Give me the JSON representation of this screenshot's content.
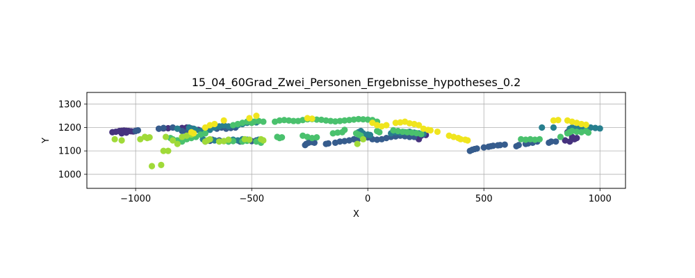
{
  "chart_data": {
    "type": "scatter",
    "title": "15_04_60Grad_Zwei_Personen_Ergebnisse_hypotheses_0.2",
    "xlabel": "X",
    "ylabel": "Y",
    "xlim": [
      -1210,
      1110
    ],
    "ylim": [
      940,
      1350
    ],
    "xticks": [
      -1000,
      -500,
      0,
      500,
      1000
    ],
    "yticks": [
      1000,
      1100,
      1200,
      1300
    ],
    "xtick_labels": [
      "−1000",
      "−500",
      "0",
      "500",
      "1000"
    ],
    "ytick_labels": [
      "1000",
      "1100",
      "1200",
      "1300"
    ],
    "grid": true,
    "colormap": "viridis",
    "colors": {
      "dark_purple": "#46327e",
      "blue": "#365c8d",
      "teal": "#277f8e",
      "green": "#4ac16d",
      "lime": "#a0da39",
      "yellow": "#f0e51e"
    },
    "groups": [
      {
        "color": "dark_purple",
        "points": [
          [
            -1100,
            1180
          ],
          [
            -1085,
            1182
          ],
          [
            -1070,
            1185
          ],
          [
            -1060,
            1186
          ],
          [
            -1050,
            1187
          ],
          [
            -1040,
            1186
          ],
          [
            -1030,
            1185
          ],
          [
            -1020,
            1184
          ],
          [
            -1010,
            1183
          ],
          [
            -1000,
            1186
          ],
          [
            -1060,
            1175
          ],
          [
            -1040,
            1178
          ],
          [
            -900,
            1195
          ],
          [
            -880,
            1196
          ],
          [
            -860,
            1197
          ],
          [
            -800,
            1198
          ],
          [
            -780,
            1200
          ],
          [
            -760,
            1196
          ],
          [
            890,
            1150
          ],
          [
            900,
            1155
          ],
          [
            880,
            1160
          ],
          [
            870,
            1140
          ],
          [
            850,
            1145
          ],
          [
            860,
            1180
          ],
          [
            900,
            1190
          ],
          [
            210,
            1160
          ],
          [
            230,
            1165
          ],
          [
            220,
            1150
          ],
          [
            250,
            1168
          ],
          [
            -730,
            1190
          ]
        ]
      },
      {
        "color": "blue",
        "points": [
          [
            -1000,
            1185
          ],
          [
            -990,
            1188
          ],
          [
            -900,
            1195
          ],
          [
            -880,
            1198
          ],
          [
            -840,
            1200
          ],
          [
            -820,
            1195
          ],
          [
            -800,
            1185
          ],
          [
            -780,
            1180
          ],
          [
            -650,
            1195
          ],
          [
            -630,
            1200
          ],
          [
            -610,
            1195
          ],
          [
            -590,
            1198
          ],
          [
            -570,
            1200
          ],
          [
            -270,
            1125
          ],
          [
            -265,
            1130
          ],
          [
            -255,
            1135
          ],
          [
            -250,
            1140
          ],
          [
            -240,
            1138
          ],
          [
            -230,
            1135
          ],
          [
            -180,
            1130
          ],
          [
            -170,
            1132
          ],
          [
            -140,
            1135
          ],
          [
            -120,
            1140
          ],
          [
            -100,
            1142
          ],
          [
            -80,
            1145
          ],
          [
            -60,
            1150
          ],
          [
            -40,
            1152
          ],
          [
            -20,
            1155
          ],
          [
            0,
            1158
          ],
          [
            20,
            1150
          ],
          [
            40,
            1148
          ],
          [
            60,
            1150
          ],
          [
            80,
            1155
          ],
          [
            100,
            1160
          ],
          [
            120,
            1162
          ],
          [
            140,
            1165
          ],
          [
            160,
            1163
          ],
          [
            180,
            1160
          ],
          [
            200,
            1160
          ],
          [
            230,
            1170
          ],
          [
            440,
            1100
          ],
          [
            450,
            1105
          ],
          [
            460,
            1108
          ],
          [
            470,
            1110
          ],
          [
            500,
            1115
          ],
          [
            520,
            1118
          ],
          [
            530,
            1120
          ],
          [
            540,
            1122
          ],
          [
            560,
            1124
          ],
          [
            570,
            1125
          ],
          [
            590,
            1127
          ],
          [
            640,
            1120
          ],
          [
            650,
            1125
          ],
          [
            680,
            1130
          ],
          [
            690,
            1132
          ],
          [
            710,
            1135
          ],
          [
            730,
            1140
          ],
          [
            780,
            1135
          ],
          [
            790,
            1140
          ],
          [
            810,
            1140
          ],
          [
            -700,
            1140
          ],
          [
            -690,
            1145
          ],
          [
            -680,
            1143
          ],
          [
            -670,
            1148
          ],
          [
            -640,
            1145
          ],
          [
            -620,
            1142
          ],
          [
            -600,
            1140
          ],
          [
            -550,
            1140
          ],
          [
            -500,
            1142
          ],
          [
            -480,
            1145
          ],
          [
            -460,
            1140
          ]
        ]
      },
      {
        "color": "teal",
        "points": [
          [
            -820,
            1195
          ],
          [
            -770,
            1200
          ],
          [
            -750,
            1195
          ],
          [
            -740,
            1190
          ],
          [
            -720,
            1185
          ],
          [
            -700,
            1180
          ],
          [
            -680,
            1190
          ],
          [
            -660,
            1200
          ],
          [
            -640,
            1205
          ],
          [
            -620,
            1210
          ],
          [
            -600,
            1205
          ],
          [
            -560,
            1210
          ],
          [
            -540,
            1215
          ],
          [
            -520,
            1220
          ],
          [
            -500,
            1225
          ],
          [
            -480,
            1222
          ],
          [
            -40,
            1180
          ],
          [
            -30,
            1185
          ],
          [
            -20,
            1175
          ],
          [
            0,
            1170
          ],
          [
            10,
            1168
          ],
          [
            100,
            1175
          ],
          [
            120,
            1180
          ],
          [
            140,
            1178
          ],
          [
            160,
            1180
          ],
          [
            180,
            1182
          ],
          [
            200,
            1178
          ],
          [
            220,
            1175
          ],
          [
            240,
            1172
          ],
          [
            750,
            1200
          ],
          [
            800,
            1200
          ],
          [
            870,
            1195
          ],
          [
            880,
            1200
          ],
          [
            900,
            1198
          ],
          [
            920,
            1200
          ],
          [
            940,
            1202
          ],
          [
            960,
            1200
          ],
          [
            980,
            1198
          ],
          [
            1000,
            1196
          ],
          [
            -710,
            1150
          ],
          [
            -660,
            1145
          ],
          [
            -580,
            1148
          ],
          [
            -560,
            1145
          ],
          [
            -540,
            1150
          ],
          [
            -520,
            1148
          ],
          [
            -470,
            1148
          ],
          [
            -460,
            1145
          ]
        ]
      },
      {
        "color": "green",
        "points": [
          [
            -850,
            1155
          ],
          [
            -840,
            1150
          ],
          [
            -820,
            1145
          ],
          [
            -800,
            1140
          ],
          [
            -780,
            1150
          ],
          [
            -760,
            1155
          ],
          [
            -740,
            1160
          ],
          [
            -720,
            1170
          ],
          [
            -700,
            1175
          ],
          [
            -580,
            1210
          ],
          [
            -560,
            1215
          ],
          [
            -540,
            1220
          ],
          [
            -520,
            1225
          ],
          [
            -500,
            1220
          ],
          [
            -490,
            1225
          ],
          [
            -470,
            1228
          ],
          [
            -450,
            1225
          ],
          [
            -400,
            1225
          ],
          [
            -380,
            1230
          ],
          [
            -360,
            1232
          ],
          [
            -340,
            1230
          ],
          [
            -320,
            1228
          ],
          [
            -300,
            1228
          ],
          [
            -280,
            1232
          ],
          [
            -260,
            1235
          ],
          [
            -240,
            1236
          ],
          [
            -220,
            1234
          ],
          [
            -200,
            1233
          ],
          [
            -180,
            1230
          ],
          [
            -160,
            1228
          ],
          [
            -140,
            1226
          ],
          [
            -120,
            1228
          ],
          [
            -100,
            1230
          ],
          [
            -80,
            1232
          ],
          [
            -60,
            1234
          ],
          [
            -40,
            1236
          ],
          [
            -20,
            1235
          ],
          [
            0,
            1234
          ],
          [
            20,
            1232
          ],
          [
            40,
            1225
          ],
          [
            -390,
            1160
          ],
          [
            -380,
            1155
          ],
          [
            -370,
            1158
          ],
          [
            -280,
            1165
          ],
          [
            -260,
            1160
          ],
          [
            -240,
            1155
          ],
          [
            -220,
            1158
          ],
          [
            -150,
            1175
          ],
          [
            -130,
            1178
          ],
          [
            -110,
            1180
          ],
          [
            -100,
            1190
          ],
          [
            -50,
            1175
          ],
          [
            -40,
            1170
          ],
          [
            -30,
            1165
          ],
          [
            40,
            1185
          ],
          [
            50,
            1180
          ],
          [
            110,
            1188
          ],
          [
            130,
            1185
          ],
          [
            150,
            1182
          ],
          [
            170,
            1180
          ],
          [
            190,
            1178
          ],
          [
            210,
            1176
          ],
          [
            230,
            1172
          ],
          [
            660,
            1150
          ],
          [
            680,
            1148
          ],
          [
            700,
            1150
          ],
          [
            720,
            1148
          ],
          [
            740,
            1150
          ],
          [
            830,
            1160
          ],
          [
            860,
            1175
          ],
          [
            870,
            1180
          ],
          [
            880,
            1185
          ],
          [
            900,
            1182
          ],
          [
            920,
            1180
          ],
          [
            940,
            1185
          ],
          [
            950,
            1178
          ],
          [
            -600,
            1140
          ],
          [
            -580,
            1142
          ],
          [
            -540,
            1140
          ],
          [
            -520,
            1143
          ],
          [
            -480,
            1140
          ],
          [
            -460,
            1135
          ]
        ]
      },
      {
        "color": "lime",
        "points": [
          [
            -1090,
            1150
          ],
          [
            -1060,
            1145
          ],
          [
            -980,
            1150
          ],
          [
            -960,
            1160
          ],
          [
            -950,
            1155
          ],
          [
            -940,
            1158
          ],
          [
            -930,
            1035
          ],
          [
            -890,
            1040
          ],
          [
            -880,
            1100
          ],
          [
            -860,
            1100
          ],
          [
            -870,
            1160
          ],
          [
            -840,
            1145
          ],
          [
            -820,
            1130
          ],
          [
            -800,
            1160
          ],
          [
            -780,
            1165
          ],
          [
            -760,
            1170
          ],
          [
            -700,
            1140
          ],
          [
            -690,
            1145
          ],
          [
            -680,
            1150
          ],
          [
            -640,
            1140
          ],
          [
            -620,
            1142
          ],
          [
            -600,
            1148
          ],
          [
            -530,
            1150
          ],
          [
            -510,
            1148
          ],
          [
            -460,
            1150
          ],
          [
            -450,
            1145
          ],
          [
            -45,
            1130
          ],
          [
            -20,
            1150
          ]
        ]
      },
      {
        "color": "yellow",
        "points": [
          [
            -760,
            1180
          ],
          [
            -750,
            1175
          ],
          [
            -700,
            1200
          ],
          [
            -680,
            1210
          ],
          [
            -660,
            1215
          ],
          [
            -620,
            1230
          ],
          [
            -510,
            1240
          ],
          [
            -480,
            1250
          ],
          [
            -260,
            1240
          ],
          [
            -240,
            1238
          ],
          [
            20,
            1220
          ],
          [
            40,
            1210
          ],
          [
            60,
            1205
          ],
          [
            80,
            1210
          ],
          [
            120,
            1220
          ],
          [
            140,
            1222
          ],
          [
            160,
            1225
          ],
          [
            180,
            1218
          ],
          [
            200,
            1215
          ],
          [
            220,
            1210
          ],
          [
            240,
            1195
          ],
          [
            260,
            1190
          ],
          [
            270,
            1188
          ],
          [
            300,
            1182
          ],
          [
            350,
            1165
          ],
          [
            370,
            1160
          ],
          [
            390,
            1155
          ],
          [
            400,
            1150
          ],
          [
            420,
            1148
          ],
          [
            430,
            1145
          ],
          [
            800,
            1230
          ],
          [
            820,
            1232
          ],
          [
            860,
            1230
          ],
          [
            880,
            1225
          ],
          [
            900,
            1220
          ],
          [
            920,
            1215
          ],
          [
            940,
            1212
          ]
        ]
      }
    ]
  }
}
